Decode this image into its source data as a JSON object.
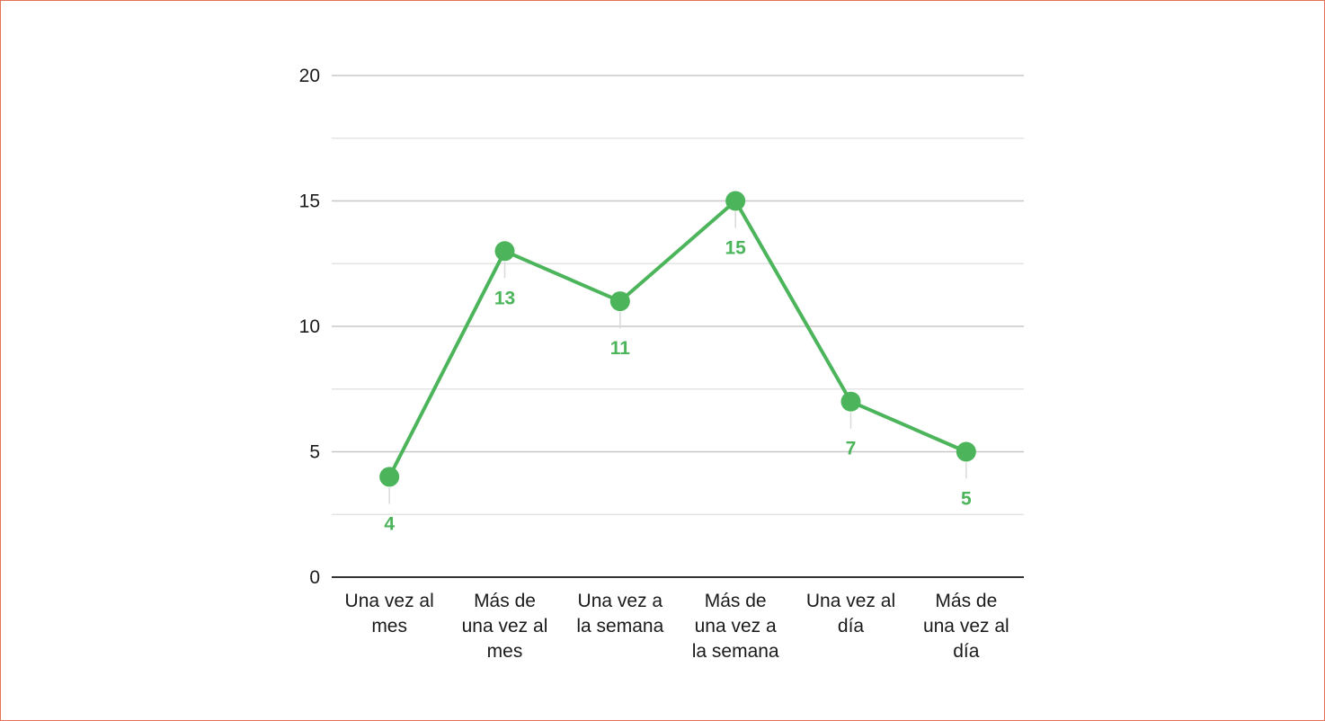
{
  "chart_data": {
    "type": "line",
    "title": "",
    "xlabel": "",
    "ylabel": "",
    "categories": [
      [
        "Una vez al",
        "mes"
      ],
      [
        "Más de",
        "una vez al",
        "mes"
      ],
      [
        "Una vez a",
        "la semana"
      ],
      [
        "Más de",
        "una vez a",
        "la semana"
      ],
      [
        "Una vez al",
        "día"
      ],
      [
        "Más de",
        "una vez al",
        "día"
      ]
    ],
    "values": [
      4,
      13,
      11,
      15,
      7,
      5
    ],
    "data_labels": [
      "4",
      "13",
      "11",
      "15",
      "7",
      "5"
    ],
    "ylim": [
      0,
      20
    ],
    "yticks": [
      0,
      5,
      10,
      15,
      20
    ],
    "ytick_labels": [
      "0",
      "5",
      "10",
      "15",
      "20"
    ],
    "minor_gridlines": [
      2.5,
      7.5,
      12.5,
      17.5
    ],
    "grid": true,
    "legend": "none",
    "colors": {
      "series": "#4cb55b",
      "grid_major": "#c8c8c8",
      "grid_minor": "#e4e4e4",
      "axis": "#333333",
      "text": "#1a1a1a",
      "frame_border": "#e6735a"
    }
  }
}
